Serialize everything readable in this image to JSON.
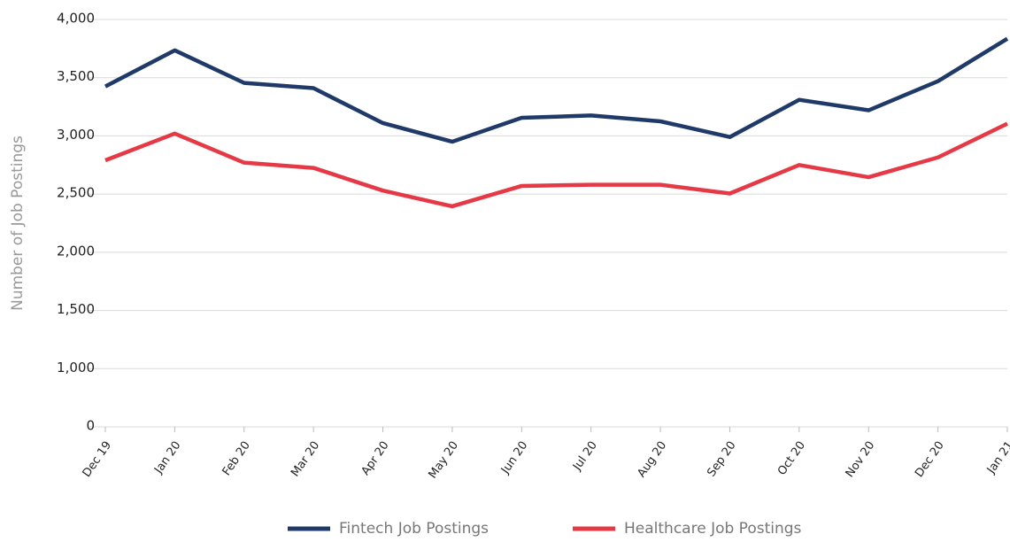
{
  "chart_data": {
    "type": "line",
    "y_label": "Number of Job Postings",
    "categories": [
      "Dec 19",
      "Jan 20",
      "Feb 20",
      "Mar 20",
      "Apr 20",
      "May 20",
      "Jun 20",
      "Jul 20",
      "Aug 20",
      "Sep 20",
      "Oct 20",
      "Nov 20",
      "Dec 20",
      "Jan 21"
    ],
    "series": [
      {
        "name": "Fintech Job Postings",
        "color": "#1f3a68",
        "values": [
          3425,
          3735,
          3455,
          3410,
          3110,
          2950,
          3155,
          3175,
          3125,
          2990,
          3310,
          3220,
          3470,
          3835
        ]
      },
      {
        "name": "Healthcare Job Postings",
        "color": "#e63946",
        "values": [
          2790,
          3020,
          2770,
          2725,
          2530,
          2395,
          2570,
          2580,
          2580,
          2505,
          2750,
          2645,
          2815,
          3105
        ]
      }
    ],
    "ylim": [
      0,
      4000
    ],
    "yticks": [
      0,
      {
        "value": 1000,
        "label": "1,000"
      },
      {
        "value": 1500,
        "label": "1,500"
      },
      {
        "value": 2000,
        "label": "2,000"
      },
      {
        "value": 2500,
        "label": "2,500"
      },
      {
        "value": 3000,
        "label": "3,000"
      },
      {
        "value": 3500,
        "label": "3,500"
      },
      {
        "value": 4000,
        "label": "4,000"
      }
    ],
    "grid": true,
    "legend": "bottom"
  }
}
